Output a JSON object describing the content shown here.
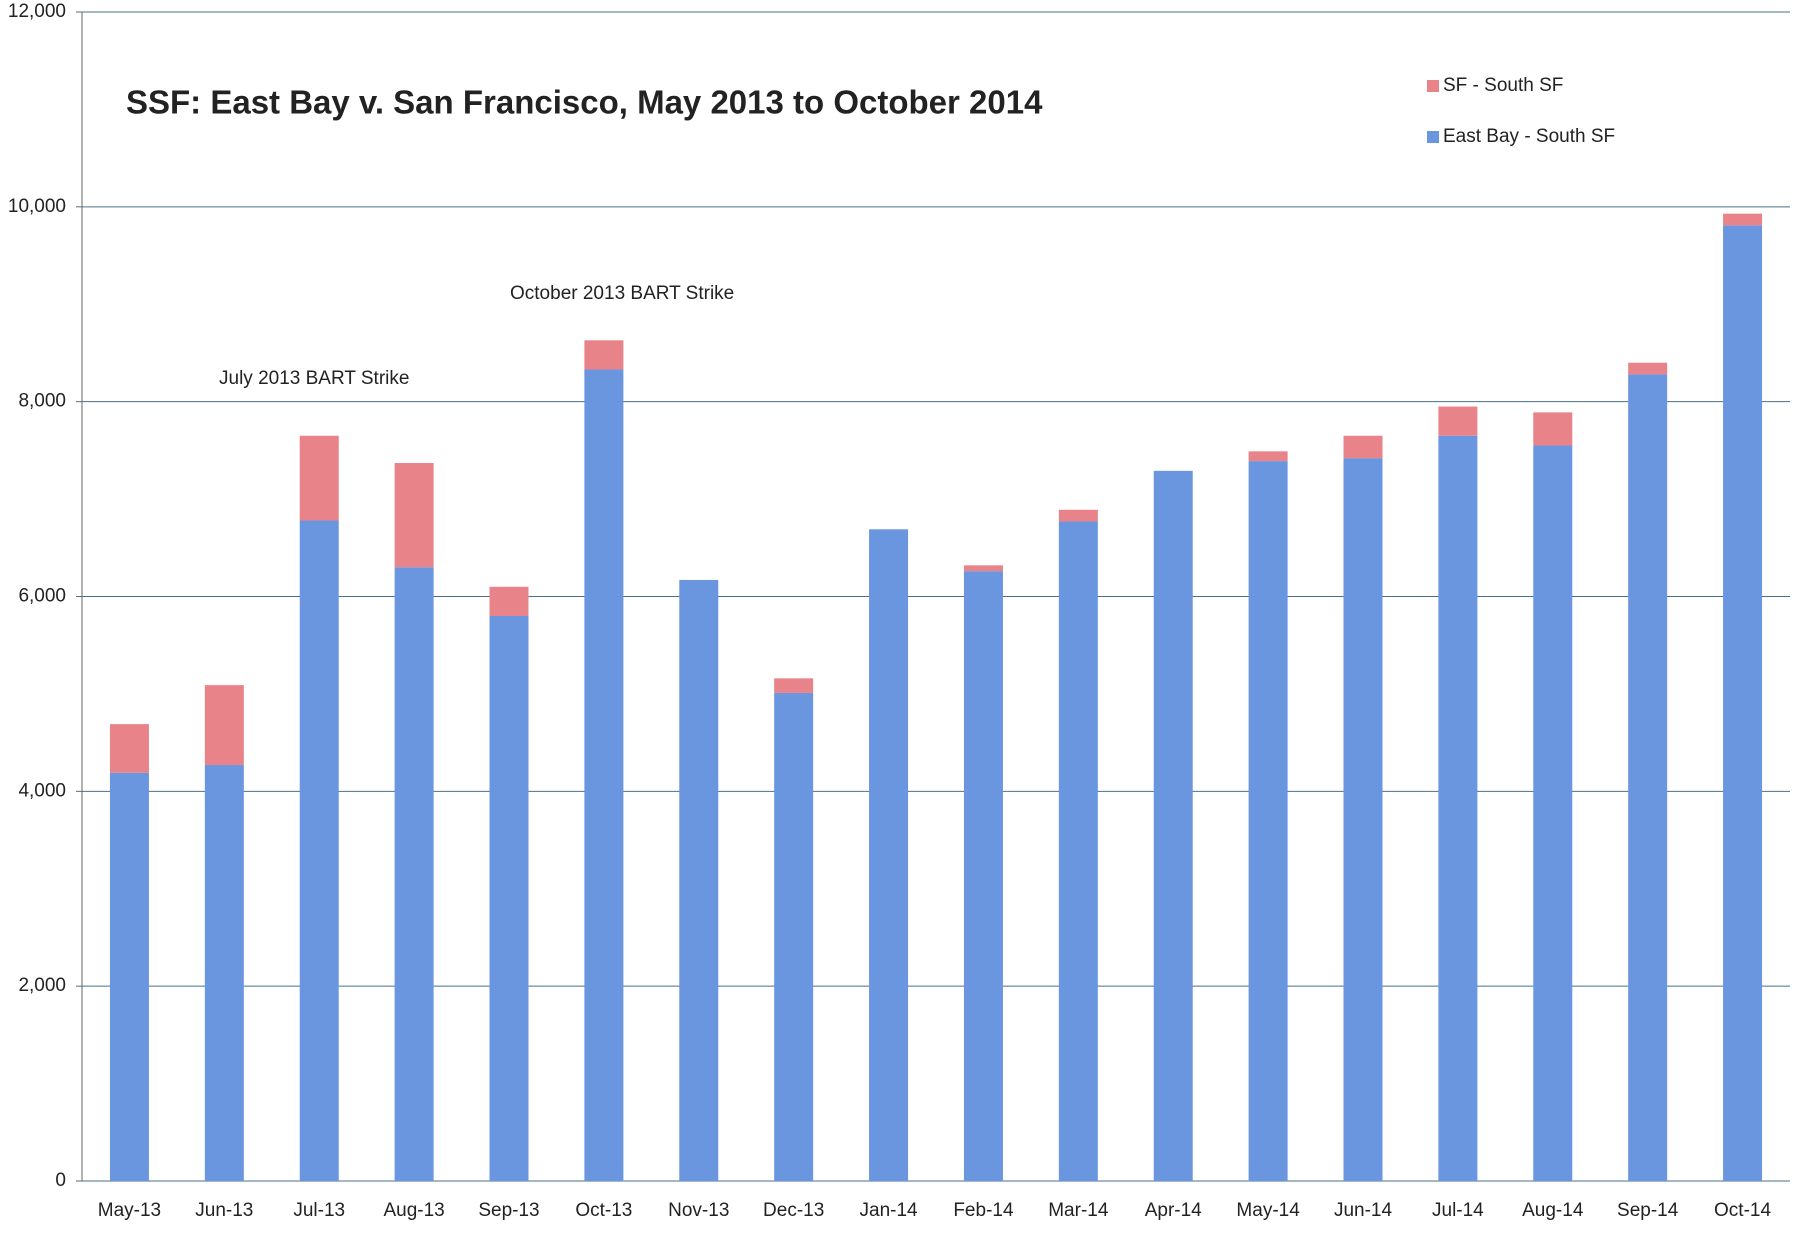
{
  "chart_data": {
    "type": "stacked-bar",
    "title": "SSF: East Bay v. San Francisco, May 2013 to October 2014",
    "annotations": [
      "July 2013 BART Strike",
      "October 2013 BART Strike"
    ],
    "categories": [
      "May-13",
      "Jun-13",
      "Jul-13",
      "Aug-13",
      "Sep-13",
      "Oct-13",
      "Nov-13",
      "Dec-13",
      "Jan-14",
      "Feb-14",
      "Mar-14",
      "Apr-14",
      "May-14",
      "Jun-14",
      "Jul-14",
      "Aug-14",
      "Sep-14",
      "Oct-14"
    ],
    "series": [
      {
        "name": "East Bay - South SF",
        "color": "#6a96e0",
        "values": [
          4190,
          4270,
          6780,
          6300,
          5800,
          8330,
          6170,
          5010,
          6690,
          6260,
          6770,
          7290,
          7390,
          7420,
          7650,
          7550,
          8280,
          9810
        ]
      },
      {
        "name": "SF - South SF",
        "color": "#e8838a",
        "values": [
          500,
          820,
          870,
          1070,
          300,
          300,
          0,
          150,
          0,
          60,
          120,
          0,
          100,
          230,
          300,
          340,
          120,
          120
        ]
      }
    ],
    "ylim": [
      0,
      12000
    ],
    "yticks": [
      0,
      {
        "value": 2000,
        "label": "2,000"
      },
      {
        "value": 4000,
        "label": "4,000"
      },
      {
        "value": 6000,
        "label": "6,000"
      },
      {
        "value": 8000,
        "label": "8,000"
      },
      {
        "value": 10000,
        "label": "10,000"
      },
      {
        "value": 12000,
        "label": "12,000"
      }
    ],
    "grid": true,
    "legend": "top-right"
  }
}
